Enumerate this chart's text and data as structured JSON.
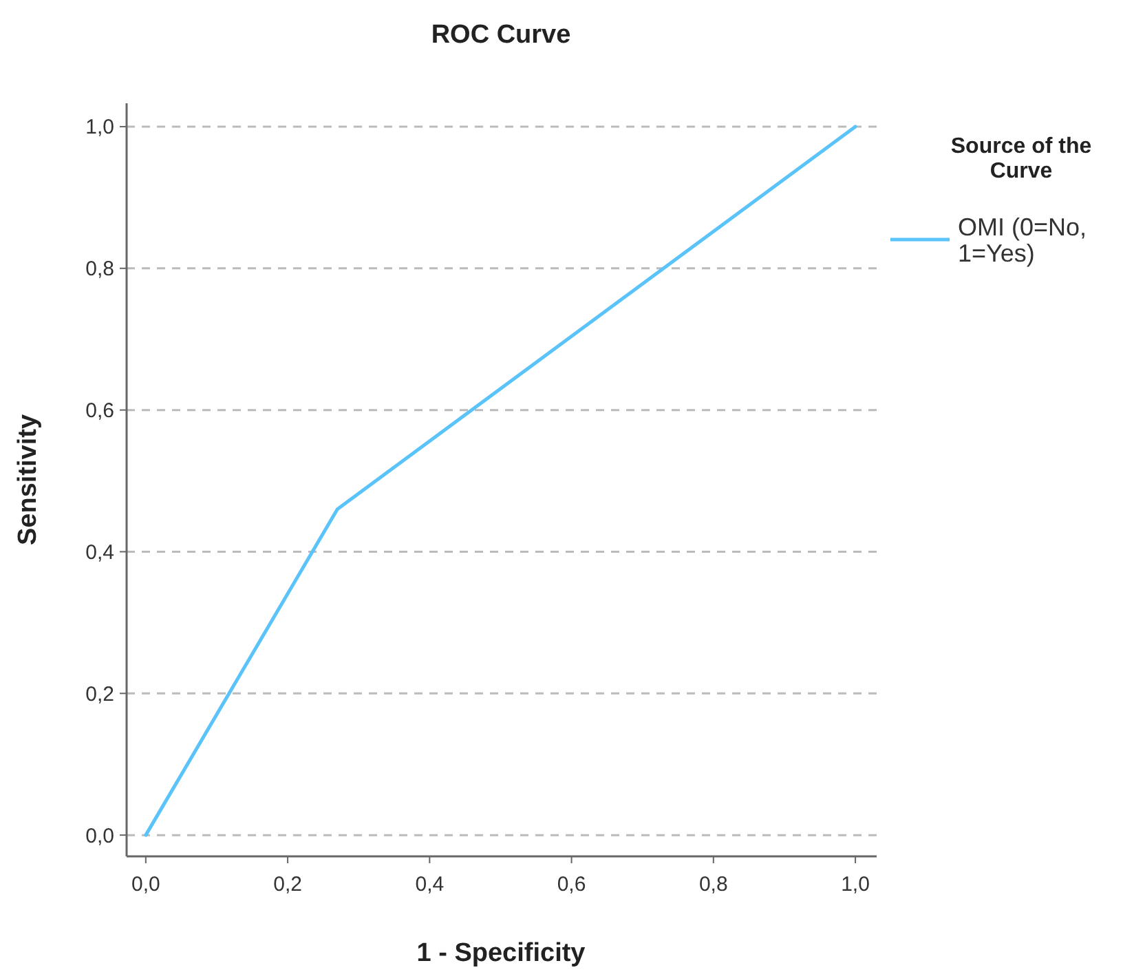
{
  "chart_data": {
    "type": "line",
    "title": "ROC Curve",
    "xlabel": "1 - Specificity",
    "ylabel": "Sensitivity",
    "legend_title": "Source of the Curve",
    "legend": "right",
    "x": [
      0,
      0.27,
      1
    ],
    "series": [
      {
        "name": "OMI (0=No, 1=Yes)",
        "color": "#5ac3fa",
        "values": [
          0,
          0.46,
          1
        ]
      }
    ],
    "xlim": [
      -0.027,
      1.03
    ],
    "ylim": [
      -0.03,
      1.033
    ],
    "xticks": [
      {
        "value": 0,
        "label": "0,0"
      },
      {
        "value": 0.2,
        "label": "0,2"
      },
      {
        "value": 0.4,
        "label": "0,4"
      },
      {
        "value": 0.6,
        "label": "0,6"
      },
      {
        "value": 0.8,
        "label": "0,8"
      },
      {
        "value": 1,
        "label": "1,0"
      }
    ],
    "yticks": [
      {
        "value": 0,
        "label": "0,0"
      },
      {
        "value": 0.2,
        "label": "0,2"
      },
      {
        "value": 0.4,
        "label": "0,4"
      },
      {
        "value": 0.6,
        "label": "0,6"
      },
      {
        "value": 0.8,
        "label": "0,8"
      },
      {
        "value": 1,
        "label": "1,0"
      }
    ],
    "grid": "y",
    "marker": "none",
    "line_style": "solid"
  }
}
